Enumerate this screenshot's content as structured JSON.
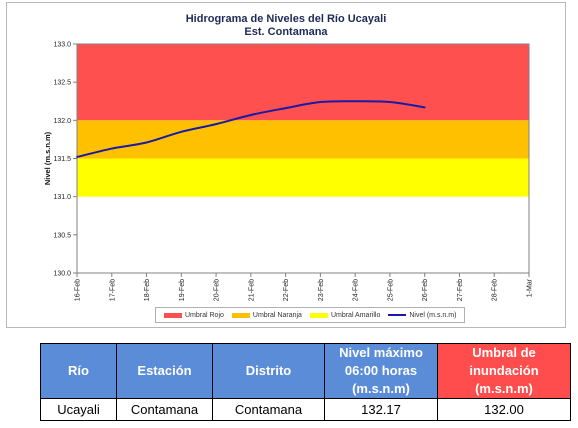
{
  "chart": {
    "title_line1": "Hidrograma de Niveles del Río Ucayali",
    "title_line2": "Est. Contamana"
  },
  "chart_data": {
    "type": "line",
    "title": "Hidrograma de Niveles del Río Ucayali",
    "subtitle": "Est. Contamana",
    "xlabel": "",
    "ylabel": "Nivel (m.s.n.m)",
    "ylim": [
      130.0,
      133.0
    ],
    "y_ticks": [
      "130.0",
      "130.5",
      "131.0",
      "131.5",
      "132.0",
      "132.5",
      "133.0"
    ],
    "x_ticks": [
      "16-Feb",
      "17-Feb",
      "18-Feb",
      "19-Feb",
      "20-Feb",
      "21-Feb",
      "22-Feb",
      "23-Feb",
      "24-Feb",
      "25-Feb",
      "26-Feb",
      "27-Feb",
      "28-Feb",
      "1-Mar"
    ],
    "bands": [
      {
        "name": "Umbral Rojo",
        "from": 132.0,
        "to": 133.0,
        "color": "#ff5050"
      },
      {
        "name": "Umbral Naranja",
        "from": 131.5,
        "to": 132.0,
        "color": "#ffc000"
      },
      {
        "name": "Umbral Amarillo",
        "from": 131.0,
        "to": 131.5,
        "color": "#ffff00"
      }
    ],
    "series": [
      {
        "name": "Nivel (m.s.n.m)",
        "color": "#1a1aa6",
        "x": [
          "16-Feb",
          "17-Feb",
          "18-Feb",
          "19-Feb",
          "20-Feb",
          "21-Feb",
          "22-Feb",
          "23-Feb",
          "24-Feb",
          "25-Feb",
          "26-Feb"
        ],
        "values": [
          131.52,
          131.63,
          131.71,
          131.85,
          131.95,
          132.07,
          132.16,
          132.24,
          132.25,
          132.24,
          132.17
        ]
      }
    ],
    "legend_position": "bottom",
    "grid": false
  },
  "table": {
    "headers": [
      {
        "label": "Río"
      },
      {
        "label": "Estación"
      },
      {
        "label": "Distrito"
      },
      {
        "label": "Nivel máximo 06:00 horas (m.s.n.m)"
      },
      {
        "label": "Umbral de inundación (m.s.n.m)"
      }
    ],
    "rows": [
      [
        "Ucayali",
        "Contamana",
        "Contamana",
        "132.17",
        "132.00"
      ]
    ]
  }
}
